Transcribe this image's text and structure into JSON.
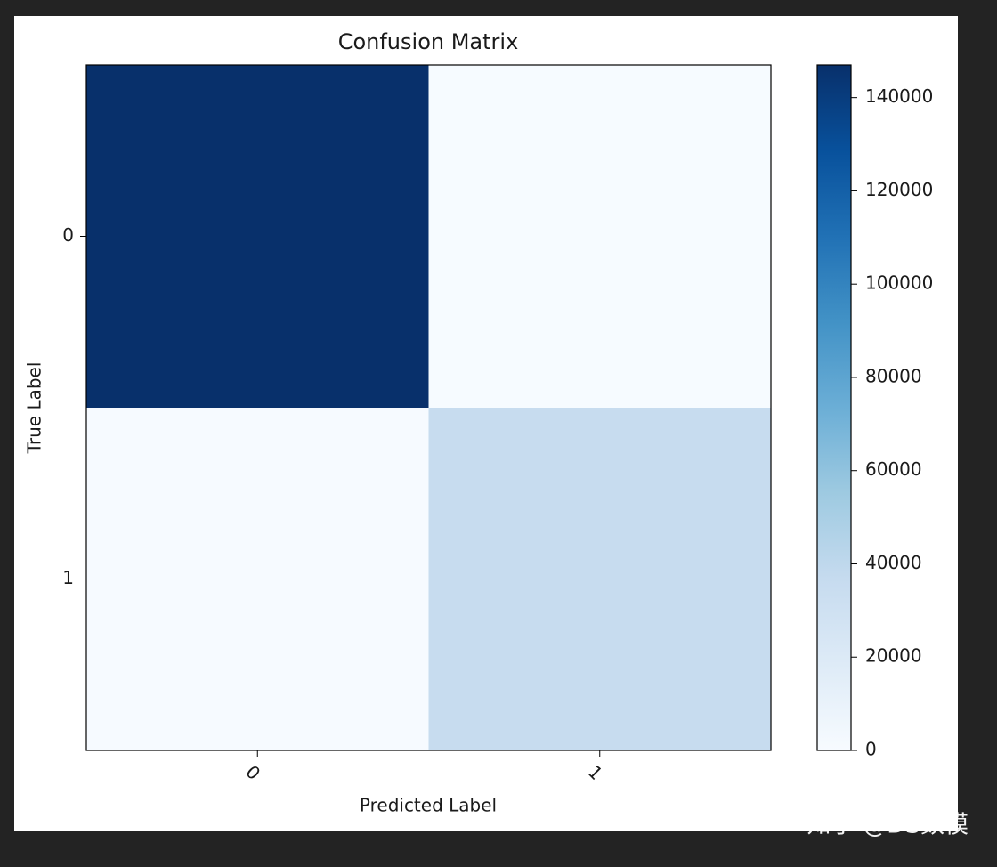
{
  "chart_data": {
    "type": "heatmap",
    "title": "Confusion Matrix",
    "x_label": "Predicted Label",
    "y_label": "True Label",
    "x_categories": [
      "0",
      "1"
    ],
    "y_categories": [
      "0",
      "1"
    ],
    "values": [
      [
        147000,
        500
      ],
      [
        1000,
        36000
      ]
    ],
    "colormap": "Blues",
    "clim": [
      0,
      147000
    ],
    "cticks": [
      0,
      20000,
      40000,
      60000,
      80000,
      100000,
      120000,
      140000
    ]
  },
  "watermark": "知乎 @DS数模"
}
